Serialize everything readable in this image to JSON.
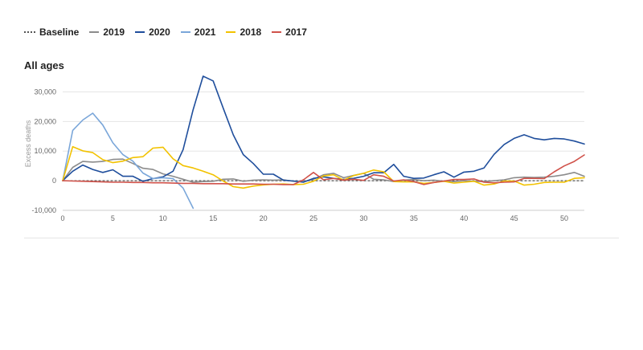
{
  "legend": {
    "items": [
      {
        "label": "Baseline",
        "color": "#555555",
        "style": "dotted"
      },
      {
        "label": "2019",
        "color": "#8c8c8c",
        "style": "solid"
      },
      {
        "label": "2020",
        "color": "#1f4e9c",
        "style": "solid"
      },
      {
        "label": "2021",
        "color": "#7aa6d9",
        "style": "solid"
      },
      {
        "label": "2018",
        "color": "#f2c200",
        "style": "solid"
      },
      {
        "label": "2017",
        "color": "#d0524a",
        "style": "solid"
      }
    ]
  },
  "chart_title": "All ages",
  "chart_data": {
    "type": "line",
    "title": "All ages",
    "xlabel": "",
    "ylabel": "Excess deaths",
    "xlim": [
      0,
      52
    ],
    "ylim": [
      -10000,
      35000
    ],
    "x_ticks": [
      0,
      5,
      10,
      15,
      20,
      25,
      30,
      35,
      40,
      45,
      50
    ],
    "y_ticks": [
      -10000,
      0,
      10000,
      20000,
      30000
    ],
    "y_tick_labels": [
      "-10,000",
      "0",
      "10,000",
      "20,000",
      "30,000"
    ],
    "grid": "horizontal",
    "series": [
      {
        "name": "Baseline",
        "color": "#555555",
        "dash": "dotted",
        "x": [
          0,
          52
        ],
        "y": [
          0,
          0
        ]
      },
      {
        "name": "2019",
        "color": "#8c8c8c",
        "x": [
          0,
          1,
          2,
          3,
          4,
          5,
          6,
          7,
          8,
          9,
          10,
          11,
          12,
          13,
          14,
          15,
          16,
          17,
          18,
          19,
          20,
          21,
          22,
          23,
          24,
          25,
          26,
          27,
          28,
          29,
          30,
          31,
          32,
          33,
          34,
          35,
          36,
          37,
          38,
          39,
          40,
          41,
          42,
          43,
          44,
          45,
          46,
          47,
          48,
          49,
          50,
          51,
          52
        ],
        "y": [
          0,
          4500,
          6500,
          6300,
          6500,
          7200,
          7300,
          5800,
          4200,
          3800,
          2300,
          1500,
          500,
          -500,
          -300,
          -200,
          500,
          600,
          -200,
          200,
          300,
          200,
          300,
          -200,
          -300,
          500,
          2000,
          2500,
          1000,
          1800,
          2500,
          500,
          300,
          -300,
          200,
          400,
          0,
          200,
          -200,
          -300,
          0,
          -200,
          -300,
          0,
          300,
          1000,
          1200,
          1100,
          1200,
          1500,
          2000,
          2800,
          1500
        ]
      },
      {
        "name": "2020",
        "color": "#1f4e9c",
        "x": [
          0,
          1,
          2,
          3,
          4,
          5,
          6,
          7,
          8,
          9,
          10,
          11,
          12,
          13,
          14,
          15,
          16,
          17,
          18,
          19,
          20,
          21,
          22,
          23,
          24,
          25,
          26,
          27,
          28,
          29,
          30,
          31,
          32,
          33,
          34,
          35,
          36,
          37,
          38,
          39,
          40,
          41,
          42,
          43,
          44,
          45,
          46,
          47,
          48,
          49,
          50,
          51,
          52
        ],
        "y": [
          0,
          3200,
          5300,
          3800,
          2800,
          3700,
          1500,
          1500,
          -200,
          700,
          1300,
          3200,
          10500,
          24000,
          35300,
          33700,
          24500,
          15500,
          8800,
          5800,
          2200,
          2200,
          200,
          -100,
          -500,
          800,
          1300,
          800,
          400,
          800,
          1500,
          2700,
          2700,
          5500,
          1500,
          800,
          900,
          2000,
          3000,
          1200,
          2900,
          3200,
          4300,
          8900,
          12200,
          14300,
          15500,
          14300,
          13800,
          14300,
          14100,
          13400,
          12400
        ]
      },
      {
        "name": "2021",
        "color": "#7aa6d9",
        "x": [
          0,
          1,
          2,
          3,
          4,
          5,
          6,
          7,
          8,
          9,
          10,
          11,
          12,
          13
        ],
        "y": [
          0,
          17000,
          20500,
          22800,
          18800,
          12800,
          8800,
          6600,
          2600,
          700,
          1000,
          700,
          -2500,
          -9300
        ]
      },
      {
        "name": "2018",
        "color": "#f2c200",
        "x": [
          0,
          1,
          2,
          3,
          4,
          5,
          6,
          7,
          8,
          9,
          10,
          11,
          12,
          13,
          14,
          15,
          16,
          17,
          18,
          19,
          20,
          21,
          22,
          23,
          24,
          25,
          26,
          27,
          28,
          29,
          30,
          31,
          32,
          33,
          34,
          35,
          36,
          37,
          38,
          39,
          40,
          41,
          42,
          43,
          44,
          45,
          46,
          47,
          48,
          49,
          50,
          51,
          52
        ],
        "y": [
          0,
          11500,
          10100,
          9500,
          7100,
          6100,
          6600,
          7800,
          8100,
          11000,
          11300,
          7400,
          5100,
          4300,
          3200,
          2000,
          -100,
          -2000,
          -2500,
          -1800,
          -1400,
          -1200,
          -1100,
          -1300,
          -1200,
          -200,
          1600,
          2000,
          200,
          1700,
          2500,
          3600,
          3000,
          -300,
          -400,
          -400,
          -900,
          -600,
          -200,
          -800,
          -500,
          -200,
          -1500,
          -1100,
          -100,
          -100,
          -1500,
          -1200,
          -600,
          -500,
          -500,
          800,
          1000
        ]
      },
      {
        "name": "2017",
        "color": "#d0524a",
        "x": [
          0,
          1,
          2,
          3,
          4,
          5,
          6,
          7,
          8,
          9,
          10,
          11,
          12,
          13,
          14,
          15,
          16,
          17,
          18,
          19,
          20,
          21,
          22,
          23,
          24,
          25,
          26,
          27,
          28,
          29,
          30,
          31,
          32,
          33,
          34,
          35,
          36,
          37,
          38,
          39,
          40,
          41,
          42,
          43,
          44,
          45,
          46,
          47,
          48,
          49,
          50,
          51,
          52
        ],
        "y": [
          0,
          -100,
          -200,
          -300,
          -400,
          -500,
          -500,
          -600,
          -600,
          -700,
          -700,
          -800,
          -900,
          -900,
          -1000,
          -1000,
          -1000,
          -1100,
          -1100,
          -1100,
          -1200,
          -1200,
          -1300,
          -1300,
          300,
          2800,
          300,
          800,
          200,
          500,
          100,
          2000,
          1500,
          -100,
          300,
          -300,
          -1300,
          -600,
          -100,
          400,
          400,
          600,
          -500,
          -700,
          -500,
          -400,
          800,
          800,
          700,
          3000,
          5000,
          6500,
          8700
        ]
      }
    ]
  }
}
